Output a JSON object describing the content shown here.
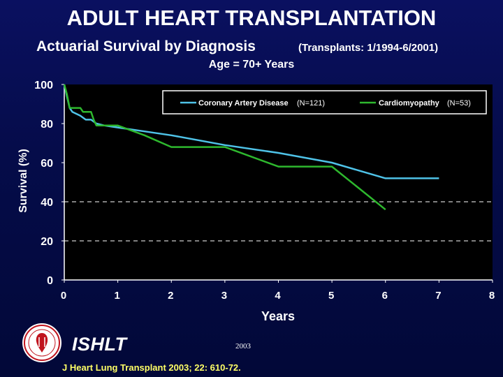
{
  "header": {
    "title": "ADULT HEART TRANSPLANTATION",
    "subtitle": "Actuarial Survival by Diagnosis",
    "subtitle_note": "(Transplants: 1/1994-6/2001)",
    "age_label": "Age = 70+ Years"
  },
  "footer": {
    "org": "ISHLT",
    "year": "2003",
    "citation": "J Heart Lung Transplant 2003; 22: 610-72.",
    "logo_icon": "ishlt-seal-icon"
  },
  "colors": {
    "background": "#050c4a",
    "plot_background": "#000000",
    "cad": "#4fc3e8",
    "cardiomyopathy": "#2eb82e",
    "grid": "#ffffff"
  },
  "chart_data": {
    "type": "line",
    "title": "ADULT HEART TRANSPLANTATION",
    "xlabel": "Years",
    "ylabel": "Survival (%)",
    "xlim": [
      0,
      8
    ],
    "ylim": [
      0,
      100
    ],
    "x_ticks": [
      "0",
      "1",
      "2",
      "3",
      "4",
      "5",
      "6",
      "7",
      "8"
    ],
    "y_ticks": [
      "0",
      "20",
      "40",
      "60",
      "80",
      "100"
    ],
    "grid": "dashed horizontal at 20 and 40",
    "legend_position": "top",
    "series": [
      {
        "name": "Coronary Artery Disease",
        "n_label": "(N=121)",
        "color": "#4fc3e8",
        "points": [
          [
            0,
            100
          ],
          [
            0.05,
            94
          ],
          [
            0.1,
            88
          ],
          [
            0.15,
            86
          ],
          [
            0.3,
            84
          ],
          [
            0.4,
            82
          ],
          [
            0.5,
            82
          ],
          [
            0.6,
            80
          ],
          [
            0.75,
            79
          ],
          [
            1,
            78
          ],
          [
            1.5,
            76
          ],
          [
            2,
            74
          ],
          [
            3,
            69
          ],
          [
            4,
            65
          ],
          [
            5,
            60
          ],
          [
            5.5,
            56
          ],
          [
            6,
            52
          ],
          [
            7,
            52
          ]
        ]
      },
      {
        "name": "Cardiomyopathy",
        "n_label": "(N=53)",
        "color": "#2eb82e",
        "points": [
          [
            0,
            100
          ],
          [
            0.05,
            95
          ],
          [
            0.1,
            88
          ],
          [
            0.3,
            88
          ],
          [
            0.35,
            86
          ],
          [
            0.5,
            86
          ],
          [
            0.55,
            82
          ],
          [
            0.6,
            79
          ],
          [
            1,
            79
          ],
          [
            1.5,
            74
          ],
          [
            2,
            68
          ],
          [
            3,
            68
          ],
          [
            4,
            58
          ],
          [
            5,
            58
          ],
          [
            6,
            36
          ]
        ]
      }
    ]
  }
}
